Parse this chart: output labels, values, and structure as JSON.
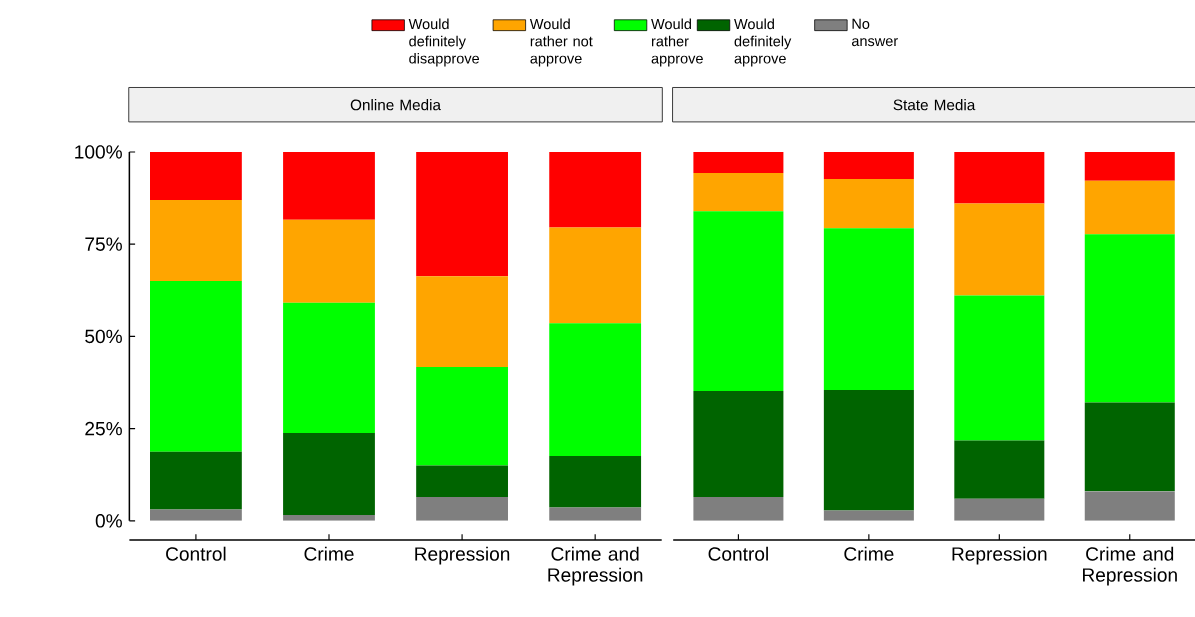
{
  "chart_data": [
    {
      "type": "bar",
      "title": "Online Media",
      "stacked": true,
      "categories": [
        "Control",
        "Crime",
        "Repression",
        "Crime and Repression"
      ],
      "ylim": [
        0,
        100
      ],
      "yticks": [
        {
          "value": 0,
          "label": "0%"
        },
        {
          "value": 25,
          "label": "25%"
        },
        {
          "value": 50,
          "label": "50%"
        },
        {
          "value": 75,
          "label": "75%"
        },
        {
          "value": 100,
          "label": "100%"
        }
      ],
      "series": [
        {
          "color": "#7f7f7f",
          "values": [
            3.1,
            1.6,
            6.5,
            3.6
          ]
        },
        {
          "color": "#006400",
          "values": [
            15.6,
            22.2,
            8.5,
            14.0
          ]
        },
        {
          "color": "#00ff00",
          "values": [
            46.3,
            35.3,
            26.7,
            36.0
          ]
        },
        {
          "color": "#ffa500",
          "values": [
            22.0,
            22.5,
            24.6,
            25.9
          ]
        },
        {
          "color": "#ff0000",
          "values": [
            13.0,
            18.4,
            33.7,
            20.5
          ]
        }
      ]
    },
    {
      "type": "bar",
      "title": "State Media",
      "stacked": true,
      "legend": "top",
      "tick_labels": "x",
      "categories": [
        "Control",
        "Crime",
        "Repression",
        "Crime and Repression"
      ],
      "ylim": [
        0,
        100
      ],
      "series": [
        {
          "name": "No answer",
          "color": "#7f7f7f",
          "values": [
            6.5,
            2.8,
            6.0,
            8.0
          ]
        },
        {
          "name": "Would definitely approve",
          "color": "#006400",
          "values": [
            28.7,
            32.7,
            15.8,
            24.1
          ]
        },
        {
          "name": "Would rather approve",
          "color": "#00ff00",
          "values": [
            48.7,
            43.8,
            39.3,
            45.6
          ]
        },
        {
          "name": "Would rather not approve",
          "color": "#ffa500",
          "values": [
            10.4,
            13.4,
            24.9,
            14.5
          ]
        },
        {
          "name": "Would definitely disapprove",
          "color": "#ff0000",
          "values": [
            5.7,
            7.3,
            14.0,
            7.8
          ]
        }
      ]
    }
  ]
}
